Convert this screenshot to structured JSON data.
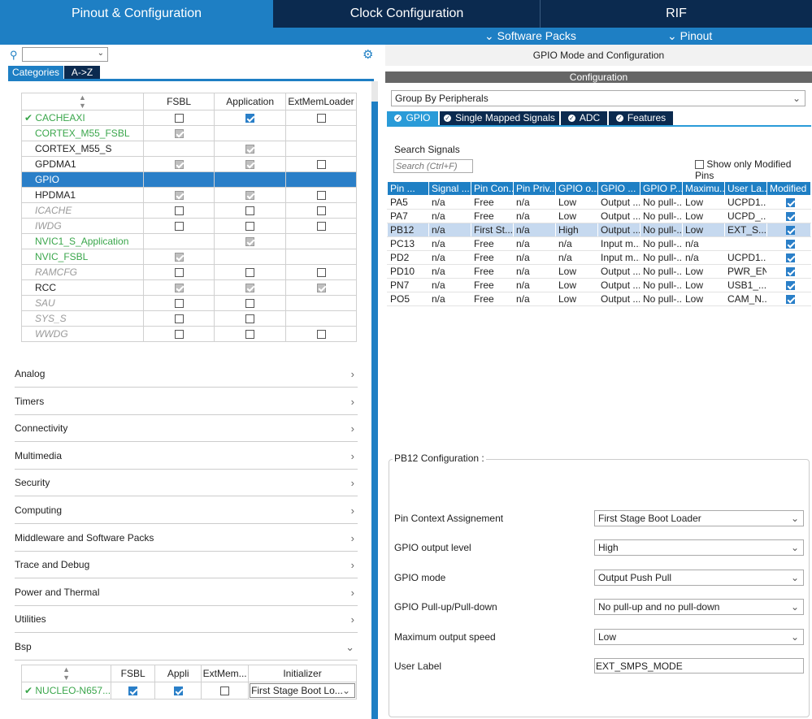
{
  "top_tabs": [
    "Pinout & Configuration",
    "Clock Configuration",
    "RIF"
  ],
  "sub_menu": [
    "Software Packs",
    "Pinout"
  ],
  "left": {
    "view_tabs": [
      "Categories",
      "A->Z"
    ],
    "columns": [
      "FSBL",
      "Application",
      "ExtMemLoader"
    ],
    "rows": [
      {
        "name": "CACHEAXI",
        "style": "green-check",
        "fsbl": "off",
        "app": "on",
        "ext": "off"
      },
      {
        "name": "CORTEX_M55_FSBL",
        "style": "green",
        "fsbl": "gray",
        "app": "none",
        "ext": "none"
      },
      {
        "name": "CORTEX_M55_S",
        "style": "normal",
        "fsbl": "none",
        "app": "gray",
        "ext": "none"
      },
      {
        "name": "GPDMA1",
        "style": "normal",
        "fsbl": "gray",
        "app": "gray",
        "ext": "off"
      },
      {
        "name": "GPIO",
        "style": "selected",
        "fsbl": "none",
        "app": "none",
        "ext": "none"
      },
      {
        "name": "HPDMA1",
        "style": "normal",
        "fsbl": "gray",
        "app": "gray",
        "ext": "off"
      },
      {
        "name": "ICACHE",
        "style": "disabled",
        "fsbl": "off",
        "app": "off",
        "ext": "off"
      },
      {
        "name": "IWDG",
        "style": "disabled",
        "fsbl": "off",
        "app": "off",
        "ext": "off"
      },
      {
        "name": "NVIC1_S_Application",
        "style": "green",
        "fsbl": "none",
        "app": "gray",
        "ext": "none"
      },
      {
        "name": "NVIC_FSBL",
        "style": "green",
        "fsbl": "gray",
        "app": "none",
        "ext": "none"
      },
      {
        "name": "RAMCFG",
        "style": "disabled",
        "fsbl": "off",
        "app": "off",
        "ext": "off"
      },
      {
        "name": "RCC",
        "style": "normal",
        "fsbl": "gray",
        "app": "gray",
        "ext": "gray"
      },
      {
        "name": "SAU",
        "style": "disabled",
        "fsbl": "off",
        "app": "off",
        "ext": "none"
      },
      {
        "name": "SYS_S",
        "style": "disabled",
        "fsbl": "off",
        "app": "off",
        "ext": "none"
      },
      {
        "name": "WWDG",
        "style": "disabled",
        "fsbl": "off",
        "app": "off",
        "ext": "off"
      }
    ],
    "categories": [
      "Analog",
      "Timers",
      "Connectivity",
      "Multimedia",
      "Security",
      "Computing",
      "Middleware and Software Packs",
      "Trace and Debug",
      "Power and Thermal",
      "Utilities",
      "Bsp"
    ],
    "bsp_columns": [
      "FSBL",
      "Appli",
      "ExtMem...",
      "Initializer"
    ],
    "bsp_row": {
      "name": "NUCLEO-N657...",
      "initializer": "First Stage Boot Lo..."
    }
  },
  "right": {
    "header": "GPIO Mode and Configuration",
    "config_bar": "Configuration",
    "group_by": "Group By Peripherals",
    "tabs": [
      "GPIO",
      "Single Mapped Signals",
      "ADC",
      "Features"
    ],
    "search_label": "Search Signals",
    "search_placeholder": "Search (Ctrl+F)",
    "show_modified": "Show only Modified Pins",
    "gpio_columns": [
      "Pin ...",
      "Signal ...",
      "Pin Con...",
      "Pin Priv...",
      "GPIO o...",
      "GPIO ...",
      "GPIO P...",
      "Maximu...",
      "User La...",
      "Modified"
    ],
    "gpio_rows": [
      [
        "PA5",
        "n/a",
        "Free",
        "n/a",
        "Low",
        "Output ...",
        "No pull-...",
        "Low",
        "UCPD1..."
      ],
      [
        "PA7",
        "n/a",
        "Free",
        "n/a",
        "Low",
        "Output ...",
        "No pull-...",
        "Low",
        "UCPD_..."
      ],
      [
        "PB12",
        "n/a",
        "First St...",
        "n/a",
        "High",
        "Output ...",
        "No pull-...",
        "Low",
        "EXT_S..."
      ],
      [
        "PC13",
        "n/a",
        "Free",
        "n/a",
        "n/a",
        "Input m...",
        "No pull-...",
        "n/a",
        ""
      ],
      [
        "PD2",
        "n/a",
        "Free",
        "n/a",
        "n/a",
        "Input m...",
        "No pull-...",
        "n/a",
        "UCPD1..."
      ],
      [
        "PD10",
        "n/a",
        "Free",
        "n/a",
        "Low",
        "Output ...",
        "No pull-...",
        "Low",
        "PWR_EN"
      ],
      [
        "PN7",
        "n/a",
        "Free",
        "n/a",
        "Low",
        "Output ...",
        "No pull-...",
        "Low",
        "USB1_..."
      ],
      [
        "PO5",
        "n/a",
        "Free",
        "n/a",
        "Low",
        "Output ...",
        "No pull-...",
        "Low",
        "CAM_N..."
      ]
    ],
    "config_title": "PB12 Configuration :",
    "config_fields": [
      {
        "label": "Pin Context Assignement",
        "value": "First Stage Boot Loader"
      },
      {
        "label": "GPIO output level",
        "value": "High"
      },
      {
        "label": "GPIO mode",
        "value": "Output Push Pull"
      },
      {
        "label": "GPIO Pull-up/Pull-down",
        "value": "No pull-up and no pull-down"
      },
      {
        "label": "Maximum output speed",
        "value": "Low"
      }
    ],
    "user_label": {
      "label": "User Label",
      "value": "EXT_SMPS_MODE"
    }
  },
  "colors": {
    "navy": "#0b2a4f",
    "blue": "#1e7fc4",
    "green": "#3aa64b"
  }
}
